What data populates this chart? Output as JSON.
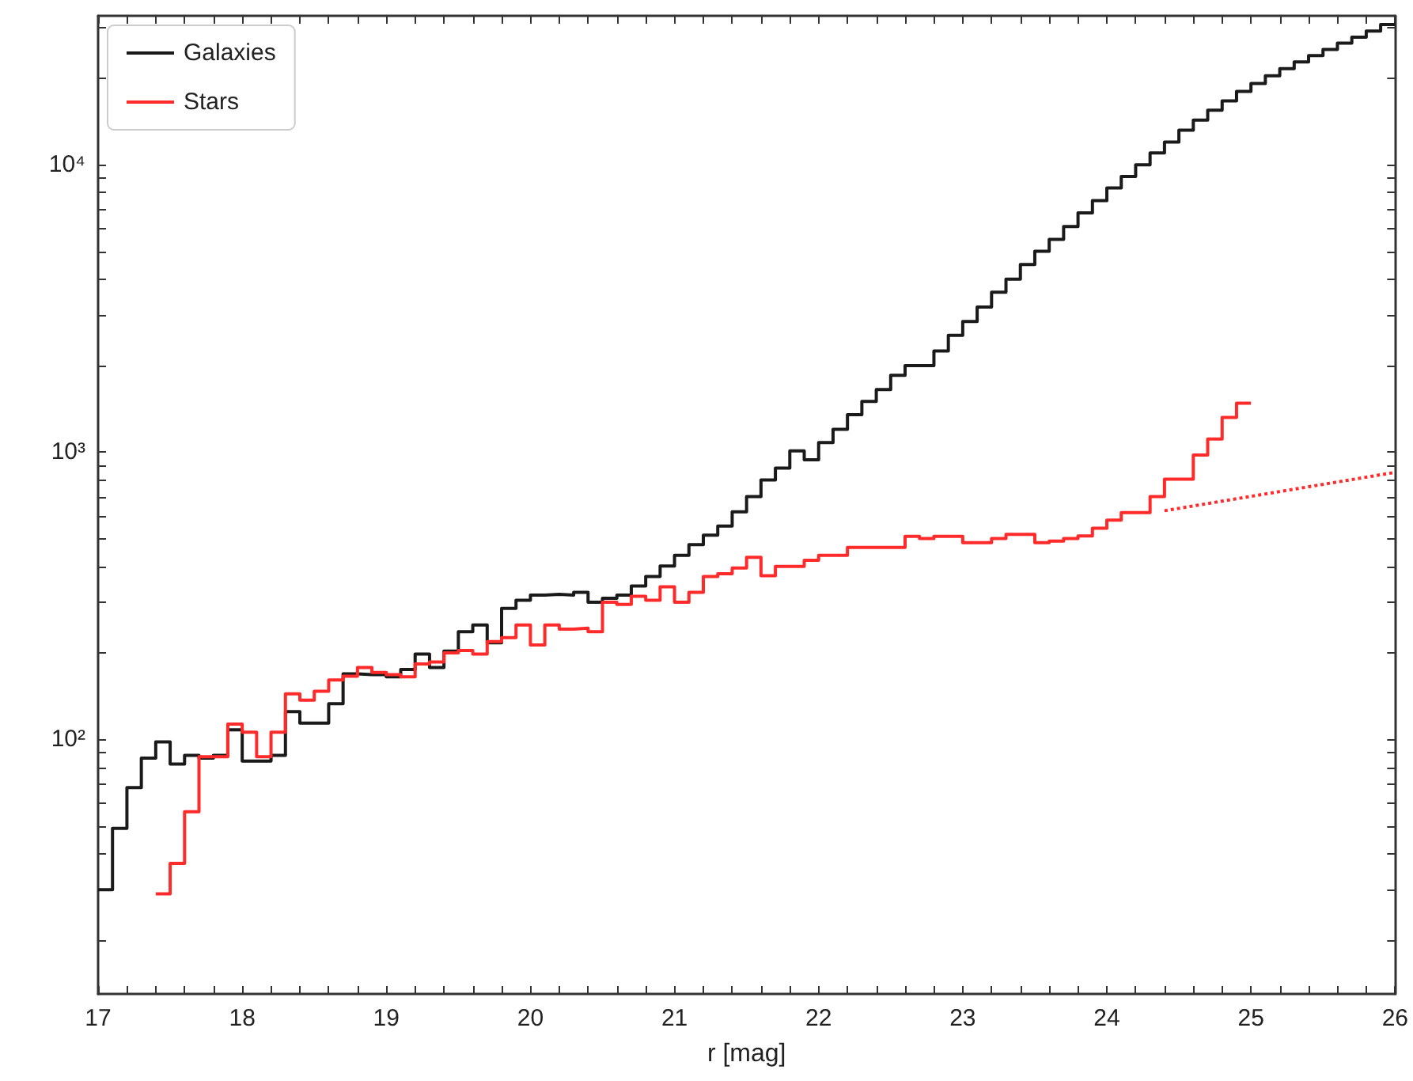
{
  "chart_data": {
    "type": "step",
    "xlabel": "r [mag]",
    "log": "y",
    "grid": false,
    "legend": "top left",
    "line_style": "solid",
    "marker": "none",
    "xlim": [
      17,
      26
    ],
    "ylim": [
      13,
      33000
    ],
    "xticks": [
      17,
      {
        "value": 17.2,
        "label": null
      },
      {
        "value": 17.4,
        "label": null
      },
      {
        "value": 17.6,
        "label": null
      },
      {
        "value": 17.8,
        "label": null
      },
      18,
      {
        "value": 18.2,
        "label": null
      },
      {
        "value": 18.4,
        "label": null
      },
      {
        "value": 18.6,
        "label": null
      },
      {
        "value": 18.8,
        "label": null
      },
      19,
      {
        "value": 19.2,
        "label": null
      },
      {
        "value": 19.4,
        "label": null
      },
      {
        "value": 19.6,
        "label": null
      },
      {
        "value": 19.8,
        "label": null
      },
      20,
      {
        "value": 20.2,
        "label": null
      },
      {
        "value": 20.4,
        "label": null
      },
      {
        "value": 20.6,
        "label": null
      },
      {
        "value": 20.8,
        "label": null
      },
      21,
      {
        "value": 21.2,
        "label": null
      },
      {
        "value": 21.4,
        "label": null
      },
      {
        "value": 21.6,
        "label": null
      },
      {
        "value": 21.8,
        "label": null
      },
      22,
      {
        "value": 22.2,
        "label": null
      },
      {
        "value": 22.4,
        "label": null
      },
      {
        "value": 22.6,
        "label": null
      },
      {
        "value": 22.8,
        "label": null
      },
      23,
      {
        "value": 23.2,
        "label": null
      },
      {
        "value": 23.4,
        "label": null
      },
      {
        "value": 23.6,
        "label": null
      },
      {
        "value": 23.8,
        "label": null
      },
      24,
      {
        "value": 24.2,
        "label": null
      },
      {
        "value": 24.4,
        "label": null
      },
      {
        "value": 24.6,
        "label": null
      },
      {
        "value": 24.8,
        "label": null
      },
      25,
      {
        "value": 25.2,
        "label": null
      },
      {
        "value": 25.4,
        "label": null
      },
      {
        "value": 25.6,
        "label": null
      },
      {
        "value": 25.8,
        "label": null
      },
      26
    ],
    "yticks": [
      {
        "value": 20,
        "label": null
      },
      {
        "value": 30,
        "label": null
      },
      {
        "value": 40,
        "label": null
      },
      {
        "value": 50,
        "label": null
      },
      {
        "value": 60,
        "label": null
      },
      {
        "value": 70,
        "label": null
      },
      {
        "value": 80,
        "label": null
      },
      {
        "value": 90,
        "label": null
      },
      {
        "value": 100,
        "label": "10²"
      },
      {
        "value": 200,
        "label": null
      },
      {
        "value": 300,
        "label": null
      },
      {
        "value": 400,
        "label": null
      },
      {
        "value": 500,
        "label": null
      },
      {
        "value": 600,
        "label": null
      },
      {
        "value": 700,
        "label": null
      },
      {
        "value": 800,
        "label": null
      },
      {
        "value": 900,
        "label": null
      },
      {
        "value": 1000,
        "label": "10³"
      },
      {
        "value": 2000,
        "label": null
      },
      {
        "value": 3000,
        "label": null
      },
      {
        "value": 4000,
        "label": null
      },
      {
        "value": 5000,
        "label": null
      },
      {
        "value": 6000,
        "label": null
      },
      {
        "value": 7000,
        "label": null
      },
      {
        "value": 8000,
        "label": null
      },
      {
        "value": 9000,
        "label": null
      },
      {
        "value": 10000,
        "label": "10⁴"
      },
      {
        "value": 20000,
        "label": null
      },
      {
        "value": 30000,
        "label": null
      }
    ],
    "series": [
      {
        "name": "Galaxies",
        "color": "#1a1a1a",
        "x": [
          17.0,
          17.1,
          17.2,
          17.3,
          17.4,
          17.5,
          17.6,
          17.7,
          17.8,
          17.9,
          18.0,
          18.1,
          18.2,
          18.3,
          18.4,
          18.5,
          18.6,
          18.7,
          18.8,
          18.9,
          19.0,
          19.1,
          19.2,
          19.3,
          19.4,
          19.5,
          19.6,
          19.7,
          19.8,
          19.9,
          20.0,
          20.1,
          20.2,
          20.3,
          20.4,
          20.5,
          20.6,
          20.7,
          20.8,
          20.9,
          21.0,
          21.1,
          21.2,
          21.3,
          21.4,
          21.5,
          21.6,
          21.7,
          21.8,
          21.9,
          22.0,
          22.1,
          22.2,
          22.3,
          22.4,
          22.5,
          22.6,
          22.7,
          22.8,
          22.9,
          23.0,
          23.1,
          23.2,
          23.3,
          23.4,
          23.5,
          23.6,
          23.7,
          23.8,
          23.9,
          24.0,
          24.1,
          24.2,
          24.3,
          24.4,
          24.5,
          24.6,
          24.7,
          24.8,
          24.9,
          25.0,
          25.1,
          25.2,
          25.3,
          25.4,
          25.5,
          25.6,
          25.7,
          25.8,
          25.9,
          26.0
        ],
        "values": [
          30,
          49,
          68,
          86,
          98,
          82,
          88,
          86,
          88,
          108,
          84,
          84,
          88,
          125,
          114,
          114,
          133,
          169,
          168,
          168,
          165,
          175,
          198,
          178,
          203,
          237,
          250,
          217,
          286,
          305,
          318,
          320,
          318,
          325,
          300,
          310,
          318,
          342,
          369,
          401,
          437,
          476,
          514,
          553,
          620,
          700,
          800,
          880,
          1010,
          940,
          1080,
          1200,
          1350,
          1500,
          1650,
          1850,
          2000,
          2000,
          2250,
          2550,
          2850,
          3200,
          3600,
          4000,
          4500,
          5000,
          5500,
          6100,
          6800,
          7500,
          8300,
          9100,
          10000,
          11000,
          12000,
          13200,
          14300,
          15500,
          16700,
          18000,
          19200,
          20400,
          21600,
          22800,
          24000,
          25200,
          26500,
          27800,
          29200,
          30800,
          30800
        ]
      },
      {
        "name": "Stars",
        "color": "#ff2a2a",
        "x": [
          17.4,
          17.5,
          17.6,
          17.7,
          17.8,
          17.9,
          18.0,
          18.1,
          18.2,
          18.3,
          18.4,
          18.5,
          18.6,
          18.7,
          18.8,
          18.9,
          19.0,
          19.1,
          19.2,
          19.3,
          19.4,
          19.5,
          19.6,
          19.7,
          19.8,
          19.9,
          20.0,
          20.1,
          20.2,
          20.3,
          20.4,
          20.5,
          20.6,
          20.7,
          20.8,
          20.9,
          21.0,
          21.1,
          21.2,
          21.3,
          21.4,
          21.5,
          21.6,
          21.7,
          21.8,
          21.9,
          22.0,
          22.1,
          22.2,
          22.3,
          22.4,
          22.5,
          22.6,
          22.7,
          22.8,
          22.9,
          23.0,
          23.1,
          23.2,
          23.3,
          23.4,
          23.5,
          23.6,
          23.7,
          23.8,
          23.9,
          24.0,
          24.1,
          24.2,
          24.3,
          24.4,
          24.5,
          24.6,
          24.7,
          24.8,
          24.9,
          25.0
        ],
        "values": [
          29,
          37,
          56,
          87,
          87,
          113,
          106,
          87,
          106,
          144,
          137,
          147,
          161,
          166,
          178,
          171,
          168,
          165,
          183,
          186,
          200,
          204,
          198,
          219,
          226,
          250,
          213,
          250,
          242,
          244,
          237,
          300,
          295,
          315,
          305,
          340,
          300,
          325,
          369,
          377,
          395,
          430,
          371,
          400,
          400,
          420,
          437,
          437,
          466,
          466,
          466,
          466,
          509,
          500,
          509,
          509,
          484,
          484,
          500,
          517,
          517,
          484,
          490,
          500,
          511,
          543,
          580,
          616,
          616,
          700,
          805,
          805,
          977,
          1110,
          1320,
          1480,
          1480
        ]
      },
      {
        "type": "line",
        "color": "#ff2a2a",
        "line_style": "dotted",
        "x": [
          24.4,
          26
        ],
        "values": [
          625,
          850
        ]
      }
    ]
  }
}
